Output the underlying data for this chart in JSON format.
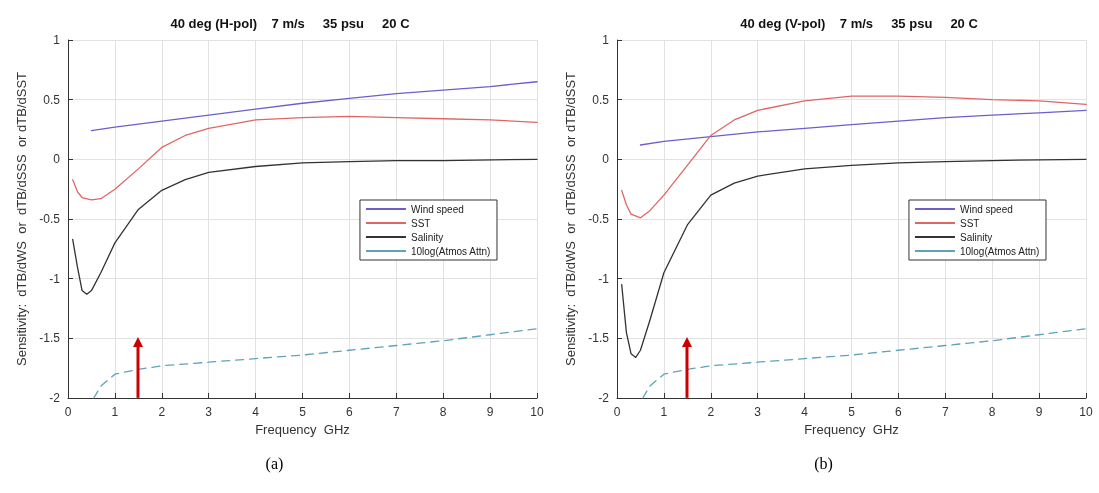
{
  "chart_data": [
    {
      "type": "line",
      "title": "40 deg (H-pol)    7 m/s     35 psu     20 C",
      "xlabel": "Frequency  GHz",
      "ylabel": "Sensitivity:  dTB/dWS  or  dTB/dSSS  or dTB/dSST",
      "annotations": [
        "(a)"
      ],
      "xlim": [
        0,
        10
      ],
      "xticks": [
        0,
        1,
        2,
        3,
        4,
        5,
        6,
        7,
        8,
        9,
        10
      ],
      "ylim": [
        -2,
        1
      ],
      "yticks": [
        -2,
        -1.5,
        -1,
        -0.5,
        0,
        0.5,
        1
      ],
      "grid": true,
      "legend": "right",
      "marker": "none",
      "ref_lines": [
        {
          "axis": "x",
          "value": 1.5,
          "color": "#cc0000"
        }
      ],
      "series": [
        {
          "name": "Wind speed",
          "color": "#6b5fcf",
          "x": [
            0.5,
            1,
            2,
            3,
            4,
            5,
            6,
            7,
            8,
            9,
            10
          ],
          "values": [
            0.24,
            0.27,
            0.32,
            0.37,
            0.42,
            0.47,
            0.51,
            0.55,
            0.58,
            0.61,
            0.65
          ]
        },
        {
          "name": "SST",
          "color": "#e06666",
          "x": [
            0.1,
            0.2,
            0.3,
            0.5,
            0.7,
            1,
            1.5,
            2,
            2.5,
            3,
            4,
            5,
            6,
            7,
            8,
            9,
            10
          ],
          "values": [
            -0.17,
            -0.27,
            -0.32,
            -0.34,
            -0.33,
            -0.25,
            -0.08,
            0.1,
            0.2,
            0.26,
            0.33,
            0.35,
            0.36,
            0.35,
            0.34,
            0.33,
            0.31
          ]
        },
        {
          "name": "Salinity",
          "color": "#333333",
          "x": [
            0.1,
            0.2,
            0.3,
            0.4,
            0.5,
            0.7,
            1,
            1.5,
            2,
            2.5,
            3,
            4,
            5,
            6,
            7,
            8,
            10
          ],
          "values": [
            -0.67,
            -0.9,
            -1.1,
            -1.13,
            -1.1,
            -0.95,
            -0.7,
            -0.42,
            -0.26,
            -0.17,
            -0.11,
            -0.06,
            -0.03,
            -0.02,
            -0.01,
            -0.01,
            0
          ]
        },
        {
          "name": "10log(Atmos Attn)",
          "color": "#5fa3b8",
          "line_style": "dashed",
          "x": [
            0.55,
            0.7,
            1,
            1.5,
            2,
            3,
            4,
            5,
            6,
            7,
            8,
            9,
            10
          ],
          "values": [
            -2,
            -1.9,
            -1.8,
            -1.76,
            -1.73,
            -1.7,
            -1.67,
            -1.64,
            -1.6,
            -1.56,
            -1.52,
            -1.47,
            -1.42
          ]
        }
      ]
    },
    {
      "type": "line",
      "title": "40 deg (V-pol)    7 m/s     35 psu     20 C",
      "xlabel": "Frequency  GHz",
      "ylabel": "Sensitivity:  dTB/dWS  or  dTB/dSSS  or dTB/dSST",
      "annotations": [
        "(b)"
      ],
      "xlim": [
        0,
        10
      ],
      "xticks": [
        0,
        1,
        2,
        3,
        4,
        5,
        6,
        7,
        8,
        9,
        10
      ],
      "ylim": [
        -2,
        1
      ],
      "yticks": [
        -2,
        -1.5,
        -1,
        -0.5,
        0,
        0.5,
        1
      ],
      "grid": true,
      "legend": "right",
      "marker": "none",
      "ref_lines": [
        {
          "axis": "x",
          "value": 1.5,
          "color": "#cc0000"
        }
      ],
      "series": [
        {
          "name": "Wind speed",
          "color": "#6b5fcf",
          "x": [
            0.5,
            1,
            2,
            3,
            4,
            5,
            6,
            7,
            8,
            9,
            10
          ],
          "values": [
            0.12,
            0.15,
            0.19,
            0.23,
            0.26,
            0.29,
            0.32,
            0.35,
            0.37,
            0.39,
            0.41
          ]
        },
        {
          "name": "SST",
          "color": "#e06666",
          "x": [
            0.1,
            0.2,
            0.3,
            0.5,
            0.7,
            1,
            1.5,
            2,
            2.5,
            3,
            4,
            5,
            6,
            7,
            8,
            9,
            10
          ],
          "values": [
            -0.26,
            -0.38,
            -0.46,
            -0.49,
            -0.43,
            -0.3,
            -0.05,
            0.2,
            0.33,
            0.41,
            0.49,
            0.53,
            0.53,
            0.52,
            0.5,
            0.49,
            0.46
          ]
        },
        {
          "name": "Salinity",
          "color": "#333333",
          "x": [
            0.1,
            0.2,
            0.3,
            0.4,
            0.5,
            0.7,
            1,
            1.5,
            2,
            2.5,
            3,
            4,
            5,
            6,
            7,
            8,
            10
          ],
          "values": [
            -1.05,
            -1.45,
            -1.63,
            -1.66,
            -1.6,
            -1.35,
            -0.95,
            -0.55,
            -0.3,
            -0.2,
            -0.14,
            -0.08,
            -0.05,
            -0.03,
            -0.02,
            -0.01,
            0
          ]
        },
        {
          "name": "10log(Atmos Attn)",
          "color": "#5fa3b8",
          "line_style": "dashed",
          "x": [
            0.55,
            0.7,
            1,
            1.5,
            2,
            3,
            4,
            5,
            6,
            7,
            8,
            9,
            10
          ],
          "values": [
            -2,
            -1.9,
            -1.8,
            -1.76,
            -1.73,
            -1.7,
            -1.67,
            -1.64,
            -1.6,
            -1.56,
            -1.52,
            -1.47,
            -1.42
          ]
        }
      ]
    }
  ]
}
